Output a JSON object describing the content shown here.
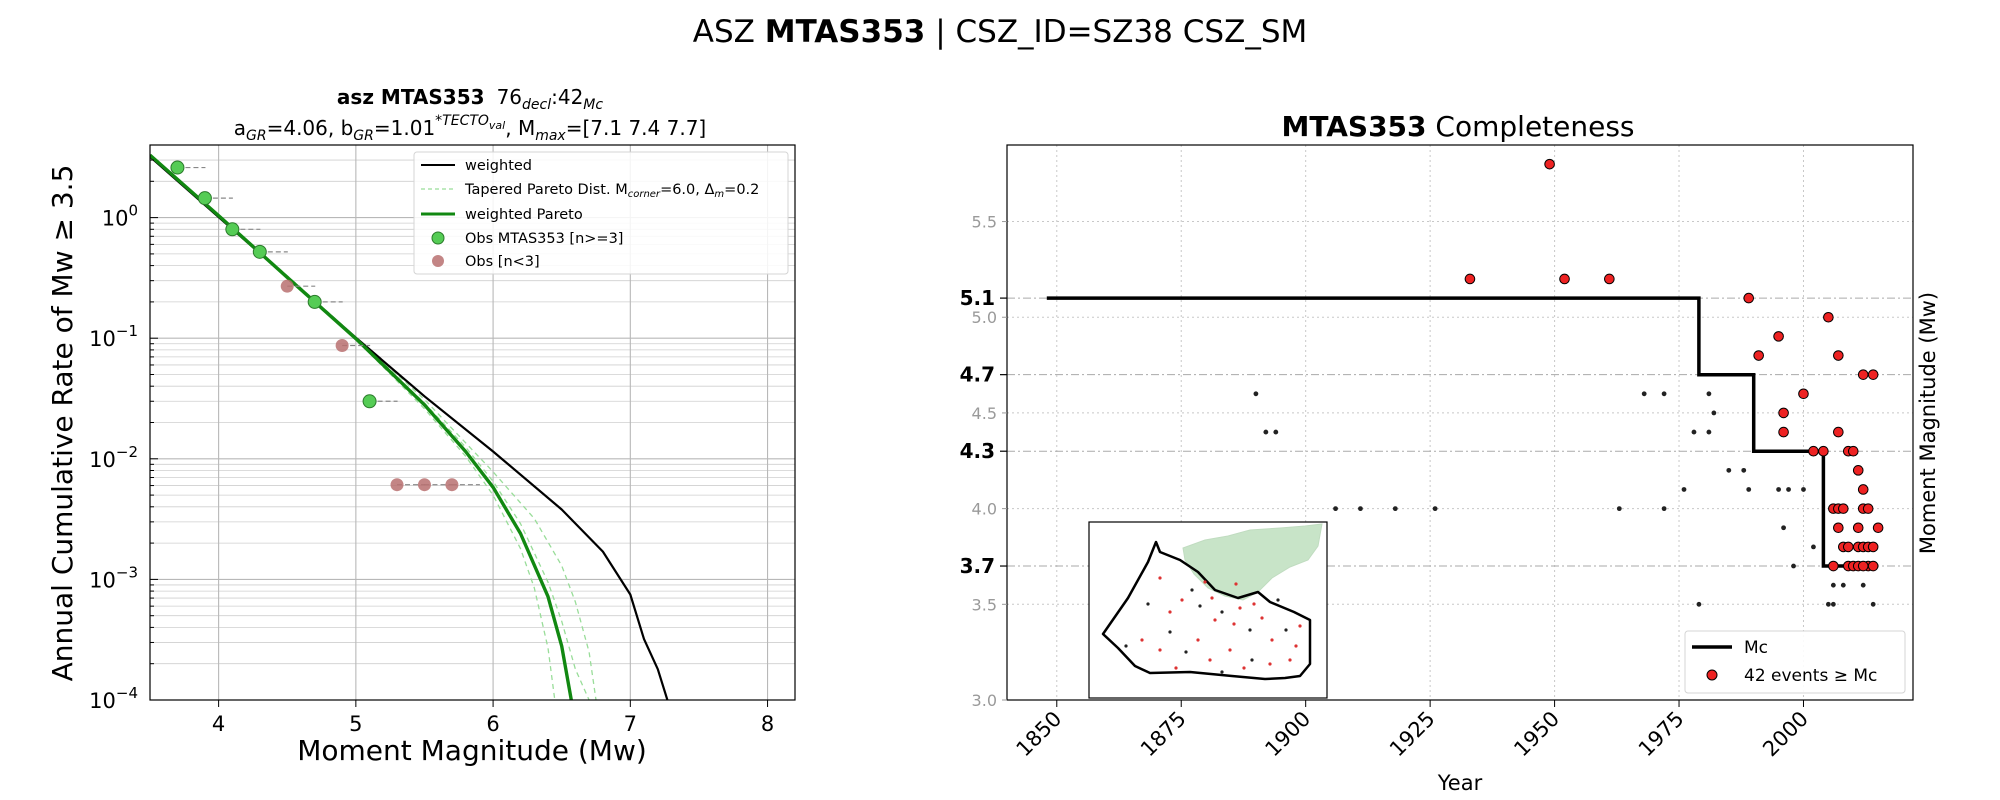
{
  "suptitle": {
    "prefix": "ASZ ",
    "bold": "MTAS353",
    "suffix": " | CSZ_ID=SZ38 CSZ_SM"
  },
  "left": {
    "title_bold": "asz MTAS353",
    "title_rest": "76",
    "title_sub1": "decl",
    "title_colon": ":42",
    "title_sub2": "Mc",
    "subtitle": {
      "a": "a",
      "a_sub": "GR",
      "a_val": "=4.06,  b",
      "b_sub": "GR",
      "b_val": "=1.01",
      "b_sup": "*TECTO",
      "b_sup_sub": "val",
      "mmax_pre": ", M",
      "mmax_sub": "max",
      "mmax_val": "=[7.1 7.4 7.7]"
    },
    "legend": {
      "weighted": "weighted",
      "tapered": "Tapered Pareto Dist. M",
      "tapered_sub": "corner",
      "tapered_mid": "=6.0, Δ",
      "tapered_sub2": "m",
      "tapered_end": "=0.2",
      "wpareto": "weighted Pareto",
      "obs": "Obs MTAS353 [n>=3]",
      "obs_low": "Obs [n<3]"
    }
  },
  "right": {
    "title_bold": "MTAS353",
    "title_rest": " Completeness",
    "legend": {
      "mc": "Mc",
      "events": "42 events ≥ Mc"
    }
  },
  "colors": {
    "green": "#118811",
    "green_light": "#99dd99",
    "obs_green": "#55cc55",
    "obs_low": "#b87070",
    "red": "#ee2222",
    "map_land": "#c8e4c8"
  },
  "chart_data": [
    {
      "type": "line",
      "title": "asz MTAS353 76decl:42Mc",
      "xlabel": "Moment Magnitude (Mw)",
      "ylabel": "Annual Cumulative Rate of Mw  ≥  3.5",
      "xlim": [
        3.5,
        8.2
      ],
      "ylim": [
        0.0001,
        4
      ],
      "yscale": "log",
      "xticks": [
        4,
        5,
        6,
        7,
        8
      ],
      "yticks": [
        {
          "v": 1,
          "base": "10",
          "exp": "0"
        },
        {
          "v": 0.1,
          "base": "10",
          "exp": "−1"
        },
        {
          "v": 0.01,
          "base": "10",
          "exp": "−2"
        },
        {
          "v": 0.001,
          "base": "10",
          "exp": "−3"
        },
        {
          "v": 0.0001,
          "base": "10",
          "exp": "−4"
        }
      ],
      "grid": true,
      "legend_position": "top-right",
      "series": [
        {
          "name": "weighted",
          "style": "black",
          "x": [
            3.5,
            4.0,
            4.5,
            5.0,
            5.5,
            6.0,
            6.5,
            6.8,
            7.0,
            7.1,
            7.2,
            7.27
          ],
          "y": [
            3.2,
            1.01,
            0.32,
            0.101,
            0.033,
            0.0115,
            0.0038,
            0.0017,
            0.00075,
            0.00032,
            0.00018,
            0.0001
          ]
        },
        {
          "name": "Tapered Pareto Dist. Mcorner=6.0, Δm=0.2",
          "style": "dashed-light",
          "x": [
            3.5,
            4.0,
            4.5,
            5.0,
            5.5,
            5.8,
            6.0,
            6.2,
            6.4,
            6.5,
            6.6,
            6.7
          ],
          "y": [
            3.3,
            1.04,
            0.325,
            0.1,
            0.029,
            0.0125,
            0.0065,
            0.0029,
            0.00095,
            0.00045,
            0.00018,
            0.0001
          ]
        },
        {
          "name": "",
          "style": "dashed-light",
          "x": [
            3.5,
            4.0,
            4.5,
            5.0,
            5.5,
            5.8,
            6.0,
            6.2,
            6.3,
            6.4,
            6.45
          ],
          "y": [
            3.3,
            1.04,
            0.32,
            0.098,
            0.026,
            0.0105,
            0.005,
            0.0018,
            0.00085,
            0.00027,
            0.0001
          ]
        },
        {
          "name": "",
          "style": "dashed-light",
          "x": [
            3.5,
            4.0,
            4.5,
            5.0,
            5.5,
            6.0,
            6.3,
            6.5,
            6.6,
            6.7,
            6.75
          ],
          "y": [
            3.3,
            1.05,
            0.33,
            0.102,
            0.031,
            0.0078,
            0.0032,
            0.0013,
            0.00065,
            0.00025,
            0.0001
          ]
        },
        {
          "name": "weighted Pareto",
          "style": "green",
          "x": [
            3.5,
            4.0,
            4.5,
            5.0,
            5.5,
            5.8,
            6.0,
            6.2,
            6.4,
            6.5,
            6.57
          ],
          "y": [
            3.3,
            1.04,
            0.32,
            0.099,
            0.028,
            0.0115,
            0.0058,
            0.0024,
            0.00072,
            0.00028,
            0.0001
          ]
        }
      ],
      "observations": {
        "name": "Obs MTAS353 [n>=3]",
        "x": [
          3.7,
          3.9,
          4.1,
          4.3,
          4.7,
          5.1
        ],
        "y": [
          2.6,
          1.45,
          0.8,
          0.52,
          0.2,
          0.03
        ]
      },
      "observations_low": {
        "name": "Obs [n<3]",
        "x": [
          4.5,
          4.9,
          5.3,
          5.5,
          5.7
        ],
        "y": [
          0.27,
          0.087,
          0.0061,
          0.0061,
          0.0061
        ]
      }
    },
    {
      "type": "scatter",
      "title": "MTAS353 Completeness",
      "xlabel": "Year",
      "ylabel": "Moment Magnitude (Mw)",
      "xlim": [
        1840,
        2022
      ],
      "ylim": [
        3.0,
        5.9
      ],
      "xticks": [
        1850,
        1875,
        1900,
        1925,
        1950,
        1975,
        2000
      ],
      "yticks": [
        3.0,
        3.5,
        4.0,
        4.5,
        5.0,
        5.5
      ],
      "mc_ticks": [
        3.7,
        4.3,
        4.7,
        5.1
      ],
      "grid": true,
      "legend_position": "bottom-right",
      "mc_step": {
        "x": [
          1848,
          1979,
          1979,
          1990,
          1990,
          2004,
          2004,
          2015
        ],
        "y": [
          5.1,
          5.1,
          4.7,
          4.7,
          4.3,
          4.3,
          3.7,
          3.7
        ]
      },
      "events_above_mc": [
        [
          1949,
          5.8
        ],
        [
          1933,
          5.2
        ],
        [
          1952,
          5.2
        ],
        [
          1961,
          5.2
        ],
        [
          1989,
          5.1
        ],
        [
          2005,
          5.0
        ],
        [
          1995,
          4.9
        ],
        [
          1991,
          4.8
        ],
        [
          2007,
          4.8
        ],
        [
          2012,
          4.7
        ],
        [
          2014,
          4.7
        ],
        [
          2000,
          4.6
        ],
        [
          1996,
          4.5
        ],
        [
          1996,
          4.4
        ],
        [
          2007,
          4.4
        ],
        [
          2002,
          4.3
        ],
        [
          2004,
          4.3
        ],
        [
          2009,
          4.3
        ],
        [
          2010,
          4.3
        ],
        [
          2011,
          4.2
        ],
        [
          2012,
          4.1
        ],
        [
          2006,
          4.0
        ],
        [
          2007,
          4.0
        ],
        [
          2008,
          4.0
        ],
        [
          2012,
          4.0
        ],
        [
          2013,
          4.0
        ],
        [
          2015,
          3.9
        ],
        [
          2007,
          3.9
        ],
        [
          2011,
          3.9
        ],
        [
          2008,
          3.8
        ],
        [
          2009,
          3.8
        ],
        [
          2011,
          3.8
        ],
        [
          2012,
          3.8
        ],
        [
          2013,
          3.8
        ],
        [
          2014,
          3.8
        ],
        [
          2009,
          3.7
        ],
        [
          2010,
          3.7
        ],
        [
          2011,
          3.7
        ],
        [
          2013,
          3.7
        ],
        [
          2006,
          3.7
        ],
        [
          2012,
          3.7
        ],
        [
          2014,
          3.7
        ]
      ],
      "events_below_mc": [
        [
          1890,
          4.6
        ],
        [
          1892,
          4.4
        ],
        [
          1894,
          4.4
        ],
        [
          1906,
          4.0
        ],
        [
          1911,
          4.0
        ],
        [
          1918,
          4.0
        ],
        [
          1926,
          4.0
        ],
        [
          1963,
          4.0
        ],
        [
          1972,
          4.0
        ],
        [
          1968,
          4.6
        ],
        [
          1972,
          4.6
        ],
        [
          1978,
          4.4
        ],
        [
          1981,
          4.4
        ],
        [
          1981,
          4.6
        ],
        [
          1982,
          4.5
        ],
        [
          1976,
          4.1
        ],
        [
          1985,
          4.2
        ],
        [
          1988,
          4.2
        ],
        [
          1989,
          4.1
        ],
        [
          1979,
          3.5
        ],
        [
          1995,
          4.1
        ],
        [
          1997,
          4.1
        ],
        [
          2000,
          4.1
        ],
        [
          1996,
          3.9
        ],
        [
          1998,
          3.7
        ],
        [
          2002,
          3.8
        ],
        [
          2005,
          3.5
        ],
        [
          2006,
          3.5
        ],
        [
          2006,
          3.6
        ],
        [
          2008,
          3.6
        ],
        [
          2012,
          3.6
        ],
        [
          2014,
          3.5
        ],
        [
          2004,
          4.3
        ]
      ],
      "legend": [
        "Mc",
        "42 events ≥ Mc"
      ]
    }
  ]
}
